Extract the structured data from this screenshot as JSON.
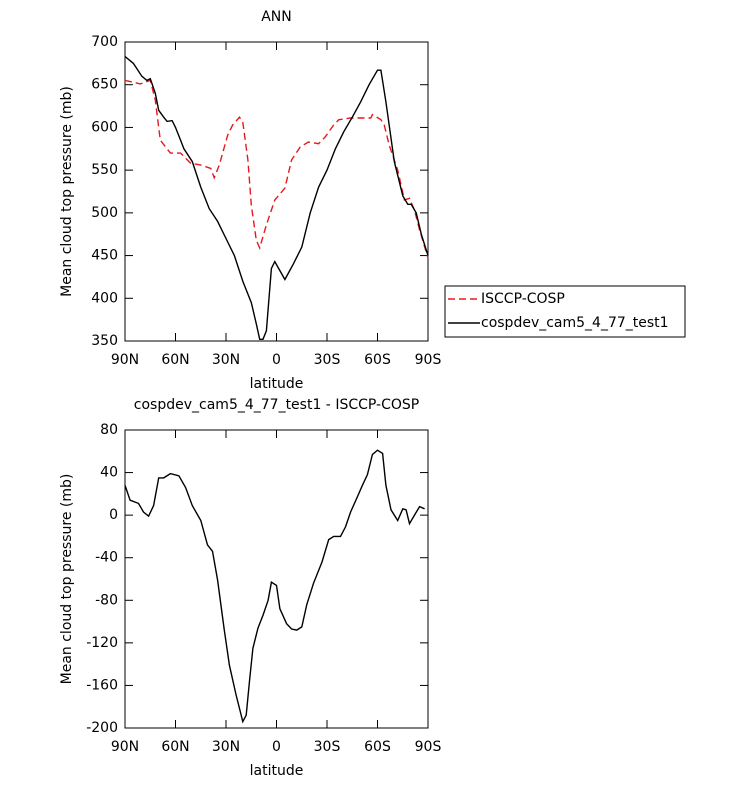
{
  "chart_data": [
    {
      "type": "line",
      "title": "ANN",
      "xlabel": "latitude",
      "ylabel": "Mean cloud top pressure (mb)",
      "xlim": [
        90,
        -90
      ],
      "ylim": [
        350,
        700
      ],
      "xticks": [
        {
          "value": 90,
          "label": "90N"
        },
        {
          "value": 60,
          "label": "60N"
        },
        {
          "value": 30,
          "label": "30N"
        },
        0,
        {
          "value": -30,
          "label": "30S"
        },
        {
          "value": -60,
          "label": "60S"
        },
        {
          "value": -90,
          "label": "90S"
        }
      ],
      "yticks": [
        350,
        400,
        450,
        500,
        550,
        600,
        650,
        700
      ],
      "legend": "right",
      "series": [
        {
          "name": "ISCCP-COSP",
          "color": "#e8191c",
          "linestyle": "dashed",
          "x": [
            90,
            81,
            75,
            72,
            69,
            63,
            57,
            51,
            45,
            39,
            37,
            34,
            29,
            26,
            22,
            20,
            17,
            15,
            12,
            10,
            6,
            1,
            -5,
            -9,
            -14,
            -19,
            -25,
            -29,
            -34,
            -37,
            -44,
            -56,
            -57,
            -62,
            -64,
            -67,
            -72,
            -76,
            -79,
            -82,
            -85,
            -90
          ],
          "values": [
            655,
            651,
            655,
            632,
            585,
            570,
            570,
            558,
            556,
            552,
            541,
            556,
            591,
            603,
            612,
            606,
            562,
            509,
            468,
            459,
            486,
            515,
            529,
            562,
            577,
            583,
            581,
            589,
            603,
            609,
            611,
            611,
            615,
            609,
            603,
            579,
            550,
            515,
            517,
            503,
            480,
            447
          ]
        },
        {
          "name": "cospdev_cam5_4_77_test1",
          "color": "#000000",
          "linestyle": "solid",
          "x": [
            90,
            85,
            80,
            77,
            75,
            72,
            70,
            67,
            65,
            62,
            60,
            57,
            55,
            50,
            45,
            40,
            35,
            30,
            25,
            20,
            15,
            12,
            10,
            8,
            6,
            3,
            1,
            -5,
            -10,
            -15,
            -20,
            -25,
            -30,
            -35,
            -40,
            -45,
            -50,
            -55,
            -60,
            -62,
            -65,
            -70,
            -75,
            -78,
            -80,
            -83,
            -86,
            -90
          ],
          "values": [
            683,
            675,
            660,
            655,
            657,
            640,
            620,
            612,
            607,
            608,
            600,
            585,
            575,
            560,
            530,
            505,
            490,
            470,
            450,
            420,
            395,
            370,
            352,
            352,
            362,
            435,
            443,
            422,
            440,
            460,
            500,
            530,
            550,
            575,
            595,
            612,
            630,
            650,
            667,
            667,
            630,
            560,
            520,
            510,
            510,
            500,
            475,
            450
          ]
        }
      ]
    },
    {
      "type": "line",
      "title": "cospdev_cam5_4_77_test1 - ISCCP-COSP",
      "xlabel": "latitude",
      "ylabel": "Mean cloud top pressure (mb)",
      "xlim": [
        90,
        -90
      ],
      "ylim": [
        -200,
        80
      ],
      "xticks": [
        {
          "value": 90,
          "label": "90N"
        },
        {
          "value": 60,
          "label": "60N"
        },
        {
          "value": 30,
          "label": "30N"
        },
        0,
        {
          "value": -30,
          "label": "30S"
        },
        {
          "value": -60,
          "label": "60S"
        },
        {
          "value": -90,
          "label": "90S"
        }
      ],
      "yticks": [
        -200,
        -160,
        -120,
        -80,
        -40,
        0,
        40,
        80
      ],
      "series": [
        {
          "color": "#000000",
          "linestyle": "solid",
          "x": [
            90,
            87,
            82,
            79,
            76,
            73,
            70,
            67,
            63,
            58,
            54,
            50,
            45,
            41,
            38,
            35,
            31,
            28,
            24,
            20,
            18,
            16,
            14,
            11,
            8,
            5,
            3,
            0,
            -2,
            -6,
            -9,
            -12,
            -15,
            -18,
            -22,
            -27,
            -31,
            -34,
            -38,
            -41,
            -44,
            -48,
            -51,
            -54,
            -57,
            -60,
            -63,
            -65,
            -68,
            -72,
            -75,
            -77,
            -79,
            -82,
            -85,
            -88
          ],
          "values": [
            28,
            14,
            11,
            3,
            -1,
            9,
            35,
            35,
            39,
            37,
            26,
            9,
            -5,
            -28,
            -34,
            -61,
            -108,
            -141,
            -169,
            -194,
            -188,
            -155,
            -125,
            -106,
            -94,
            -80,
            -63,
            -66,
            -88,
            -102,
            -107,
            -108,
            -105,
            -84,
            -64,
            -44,
            -23,
            -20,
            -20,
            -11,
            3,
            17,
            28,
            38,
            57,
            61,
            58,
            28,
            5,
            -5,
            6,
            5,
            -8,
            0,
            8,
            6
          ]
        }
      ]
    }
  ]
}
